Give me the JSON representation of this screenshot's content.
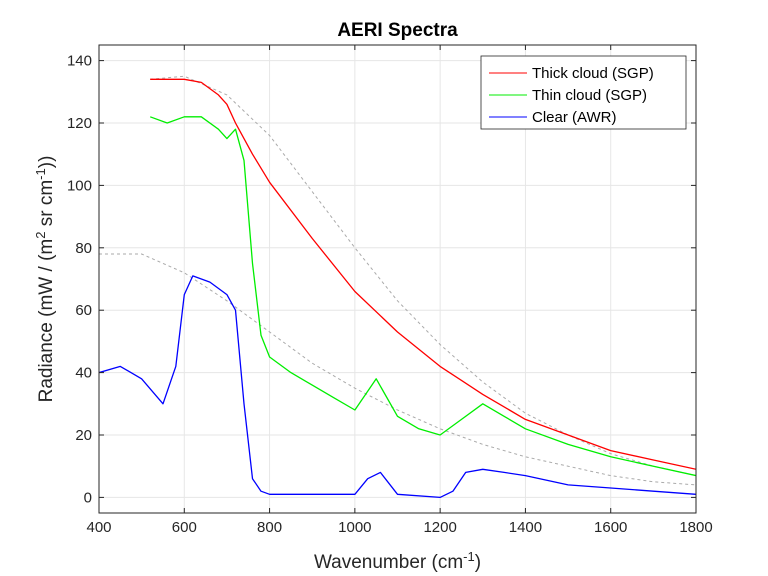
{
  "chart_data": {
    "type": "line",
    "title": "AERI Spectra",
    "xlabel": "Wavenumber (cm",
    "xlabel_sup": "-1",
    "xlabel_end": ")",
    "ylabel_a": "Radiance (mW / (m",
    "ylabel_sup1": "2",
    "ylabel_b": " sr cm",
    "ylabel_sup2": "-1",
    "ylabel_end": "))",
    "xlim": [
      400,
      1800
    ],
    "ylim": [
      -5,
      145
    ],
    "xticks": [
      400,
      600,
      800,
      1000,
      1200,
      1400,
      1600,
      1800
    ],
    "yticks": [
      0,
      20,
      40,
      60,
      80,
      100,
      120,
      140
    ],
    "grid": true,
    "legend_position": "top-right",
    "series": [
      {
        "name": "Thick cloud (SGP)",
        "color": "#ff0000",
        "x": [
          520,
          560,
          600,
          640,
          680,
          700,
          720,
          760,
          800,
          900,
          1000,
          1100,
          1200,
          1300,
          1400,
          1500,
          1600,
          1700,
          1800
        ],
        "y": [
          134,
          134,
          134,
          133,
          129,
          126,
          120,
          110,
          101,
          83,
          66,
          53,
          42,
          33,
          25,
          20,
          15,
          12,
          9
        ]
      },
      {
        "name": "Thin cloud (SGP)",
        "color": "#00ee00",
        "x": [
          520,
          560,
          600,
          640,
          680,
          700,
          720,
          740,
          760,
          780,
          800,
          850,
          900,
          950,
          1000,
          1050,
          1100,
          1150,
          1200,
          1250,
          1300,
          1350,
          1400,
          1500,
          1600,
          1700,
          1800
        ],
        "y": [
          122,
          120,
          122,
          122,
          118,
          115,
          118,
          108,
          75,
          52,
          45,
          40,
          36,
          32,
          28,
          38,
          26,
          22,
          20,
          25,
          30,
          26,
          22,
          17,
          13,
          10,
          7
        ]
      },
      {
        "name": "Clear (AWR)",
        "color": "#0000ff",
        "x": [
          400,
          450,
          500,
          550,
          580,
          600,
          620,
          660,
          700,
          720,
          740,
          760,
          780,
          800,
          900,
          1000,
          1030,
          1060,
          1100,
          1200,
          1230,
          1260,
          1300,
          1350,
          1400,
          1500,
          1600,
          1700,
          1800
        ],
        "y": [
          40,
          42,
          38,
          30,
          42,
          65,
          71,
          69,
          65,
          60,
          30,
          6,
          2,
          1,
          1,
          1,
          6,
          8,
          1,
          0,
          2,
          8,
          9,
          8,
          7,
          4,
          3,
          2,
          1
        ]
      },
      {
        "name": "Planck reference (thick)",
        "color": "#aaaaaa",
        "dashed": true,
        "in_legend": false,
        "x": [
          520,
          600,
          700,
          800,
          900,
          1000,
          1100,
          1200,
          1300,
          1400,
          1500,
          1600,
          1700,
          1800
        ],
        "y": [
          134,
          135,
          129,
          116,
          98,
          80,
          63,
          49,
          37,
          27,
          20,
          14,
          10,
          7
        ]
      },
      {
        "name": "Planck reference (clear)",
        "color": "#aaaaaa",
        "dashed": true,
        "in_legend": false,
        "x": [
          400,
          500,
          600,
          700,
          800,
          900,
          1000,
          1100,
          1200,
          1300,
          1400,
          1500,
          1600,
          1700,
          1800
        ],
        "y": [
          78,
          78,
          72,
          63,
          53,
          43,
          35,
          28,
          22,
          17,
          13,
          10,
          7,
          5,
          4
        ]
      }
    ]
  }
}
